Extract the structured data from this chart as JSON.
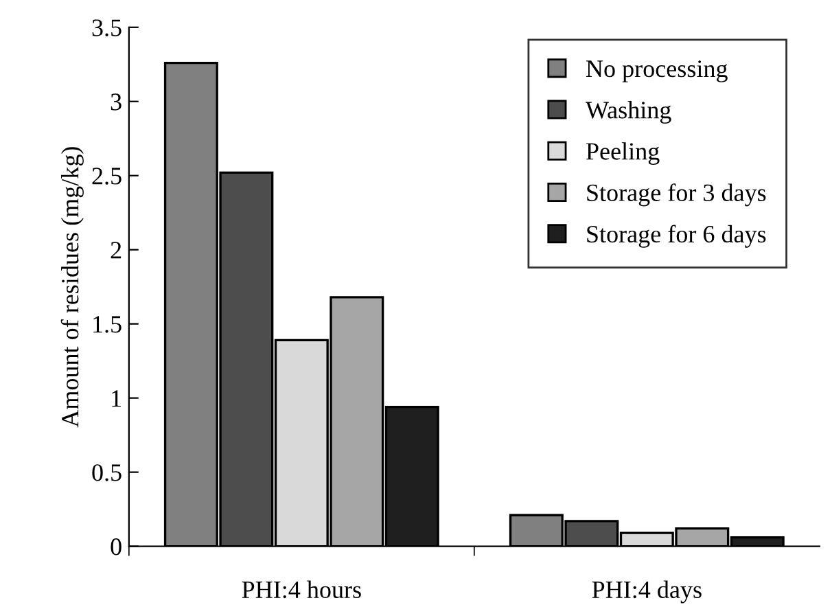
{
  "chart_data": {
    "type": "bar",
    "ylabel": "Amount of residues (mg/kg)",
    "categories": [
      "PHI:4 hours",
      "PHI:4 days"
    ],
    "series": [
      {
        "name": "No processing",
        "color": "#808080",
        "values": [
          3.26,
          0.21
        ]
      },
      {
        "name": "Washing",
        "color": "#4d4d4d",
        "values": [
          2.52,
          0.17
        ]
      },
      {
        "name": "Peeling",
        "color": "#d9d9d9",
        "values": [
          1.39,
          0.09
        ]
      },
      {
        "name": "Storage for 3 days",
        "color": "#a6a6a6",
        "values": [
          1.68,
          0.12
        ]
      },
      {
        "name": "Storage for 6 days",
        "color": "#1f1f1f",
        "values": [
          0.94,
          0.06
        ]
      }
    ],
    "ylim": [
      0,
      3.5
    ],
    "yticks": [
      0,
      0.5,
      1,
      1.5,
      2,
      2.5,
      3,
      3.5
    ],
    "grid": false,
    "legend": "top right"
  }
}
